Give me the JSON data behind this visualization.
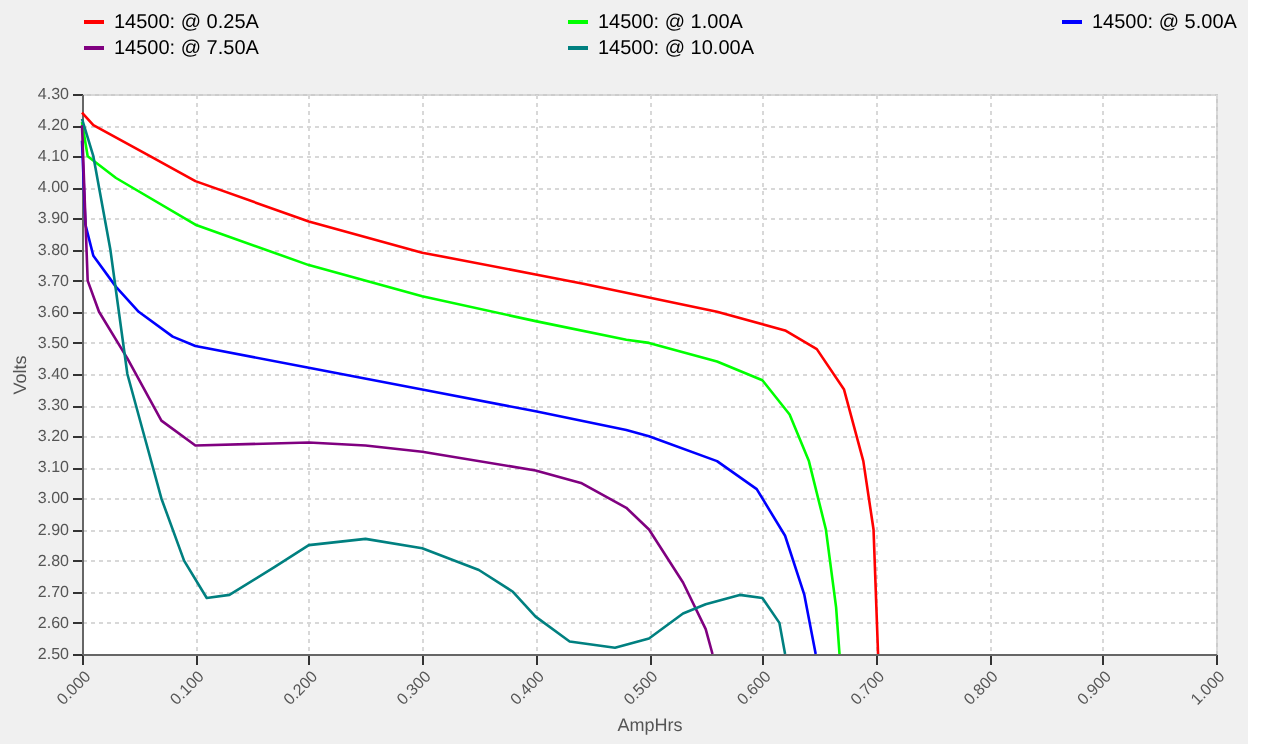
{
  "chart_data": {
    "type": "line",
    "xlabel": "AmpHrs",
    "ylabel": "Volts",
    "xlim": [
      0,
      1
    ],
    "ylim": [
      2.5,
      4.3
    ],
    "xticks": [
      {
        "value": 0,
        "label": "0.000"
      },
      {
        "value": 0.1,
        "label": "0.100"
      },
      {
        "value": 0.2,
        "label": "0.200"
      },
      {
        "value": 0.3,
        "label": "0.300"
      },
      {
        "value": 0.4,
        "label": "0.400"
      },
      {
        "value": 0.5,
        "label": "0.500"
      },
      {
        "value": 0.6,
        "label": "0.600"
      },
      {
        "value": 0.7,
        "label": "0.700"
      },
      {
        "value": 0.8,
        "label": "0.800"
      },
      {
        "value": 0.9,
        "label": "0.900"
      },
      {
        "value": 1,
        "label": "1.000"
      }
    ],
    "yticks": [
      {
        "value": 2.5,
        "label": "2.50"
      },
      {
        "value": 2.6,
        "label": "2.60"
      },
      {
        "value": 2.7,
        "label": "2.70"
      },
      {
        "value": 2.8,
        "label": "2.80"
      },
      {
        "value": 2.9,
        "label": "2.90"
      },
      {
        "value": 3.0,
        "label": "3.00"
      },
      {
        "value": 3.1,
        "label": "3.10"
      },
      {
        "value": 3.2,
        "label": "3.20"
      },
      {
        "value": 3.3,
        "label": "3.30"
      },
      {
        "value": 3.4,
        "label": "3.40"
      },
      {
        "value": 3.5,
        "label": "3.50"
      },
      {
        "value": 3.6,
        "label": "3.60"
      },
      {
        "value": 3.7,
        "label": "3.70"
      },
      {
        "value": 3.8,
        "label": "3.80"
      },
      {
        "value": 3.9,
        "label": "3.90"
      },
      {
        "value": 4.0,
        "label": "4.00"
      },
      {
        "value": 4.1,
        "label": "4.10"
      },
      {
        "value": 4.2,
        "label": "4.20"
      },
      {
        "value": 4.3,
        "label": "4.30"
      }
    ],
    "grid": true,
    "legend": "top",
    "marker": "none",
    "line_style": "solid",
    "series": [
      {
        "name": "14500: @ 0.25A",
        "color": "#ff0000",
        "x": [
          0,
          0.01,
          0.06,
          0.1,
          0.2,
          0.3,
          0.4,
          0.442,
          0.56,
          0.62,
          0.648,
          0.672,
          0.689,
          0.698,
          0.702
        ],
        "values": [
          4.24,
          4.2,
          4.1,
          4.02,
          3.89,
          3.79,
          3.72,
          3.69,
          3.6,
          3.54,
          3.48,
          3.35,
          3.12,
          2.9,
          2.5
        ]
      },
      {
        "name": "14500: @ 1.00A",
        "color": "#00ff00",
        "x": [
          0,
          0.005,
          0.03,
          0.1,
          0.2,
          0.3,
          0.4,
          0.48,
          0.5,
          0.56,
          0.6,
          0.624,
          0.641,
          0.656,
          0.665,
          0.668
        ],
        "values": [
          4.21,
          4.1,
          4.03,
          3.88,
          3.75,
          3.65,
          3.57,
          3.51,
          3.5,
          3.44,
          3.38,
          3.27,
          3.12,
          2.9,
          2.65,
          2.5
        ]
      },
      {
        "name": "14500: @ 5.00A",
        "color": "#0000ff",
        "x": [
          0,
          0.003,
          0.01,
          0.03,
          0.05,
          0.08,
          0.1,
          0.2,
          0.3,
          0.4,
          0.48,
          0.5,
          0.56,
          0.595,
          0.62,
          0.637,
          0.647
        ],
        "values": [
          4.15,
          3.88,
          3.78,
          3.68,
          3.6,
          3.52,
          3.49,
          3.42,
          3.35,
          3.28,
          3.22,
          3.2,
          3.12,
          3.03,
          2.88,
          2.69,
          2.5
        ]
      },
      {
        "name": "14500: @ 7.50A",
        "color": "#800080",
        "x": [
          0,
          0.005,
          0.015,
          0.04,
          0.07,
          0.1,
          0.2,
          0.25,
          0.3,
          0.4,
          0.44,
          0.48,
          0.5,
          0.53,
          0.55,
          0.556
        ],
        "values": [
          4.2,
          3.7,
          3.6,
          3.45,
          3.25,
          3.17,
          3.18,
          3.17,
          3.15,
          3.09,
          3.05,
          2.97,
          2.9,
          2.73,
          2.58,
          2.5
        ]
      },
      {
        "name": "14500: @ 10.00A",
        "color": "#008080",
        "x": [
          0,
          0.01,
          0.025,
          0.04,
          0.055,
          0.07,
          0.09,
          0.11,
          0.13,
          0.17,
          0.2,
          0.25,
          0.3,
          0.35,
          0.38,
          0.4,
          0.43,
          0.47,
          0.5,
          0.53,
          0.55,
          0.58,
          0.6,
          0.615,
          0.62
        ],
        "values": [
          4.22,
          4.1,
          3.8,
          3.4,
          3.2,
          3.0,
          2.8,
          2.68,
          2.69,
          2.78,
          2.85,
          2.87,
          2.84,
          2.77,
          2.7,
          2.62,
          2.54,
          2.52,
          2.55,
          2.63,
          2.66,
          2.69,
          2.68,
          2.6,
          2.5
        ]
      }
    ]
  }
}
